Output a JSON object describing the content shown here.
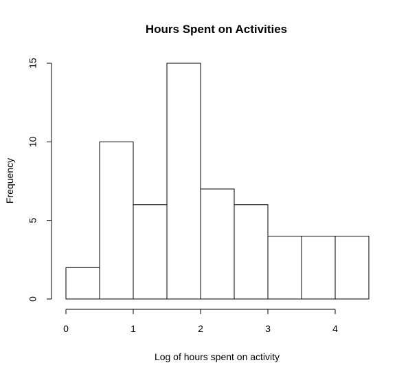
{
  "chart_data": {
    "type": "bar",
    "subtype": "histogram",
    "title": "Hours Spent on Activities",
    "xlabel": "Log of hours spent on activity",
    "ylabel": "Frequency",
    "bin_edges": [
      0,
      0.5,
      1,
      1.5,
      2,
      2.5,
      3,
      3.5,
      4,
      4.5
    ],
    "values": [
      2,
      10,
      6,
      15,
      7,
      6,
      4,
      4,
      4
    ],
    "xlim": [
      0,
      4.5
    ],
    "ylim": [
      0,
      15
    ],
    "x_ticks": [
      0,
      1,
      2,
      3,
      4
    ],
    "y_ticks": [
      0,
      5,
      10,
      15
    ],
    "bar_fill": "#ffffff",
    "bar_stroke": "#000000",
    "grid": false,
    "legend": "none"
  }
}
